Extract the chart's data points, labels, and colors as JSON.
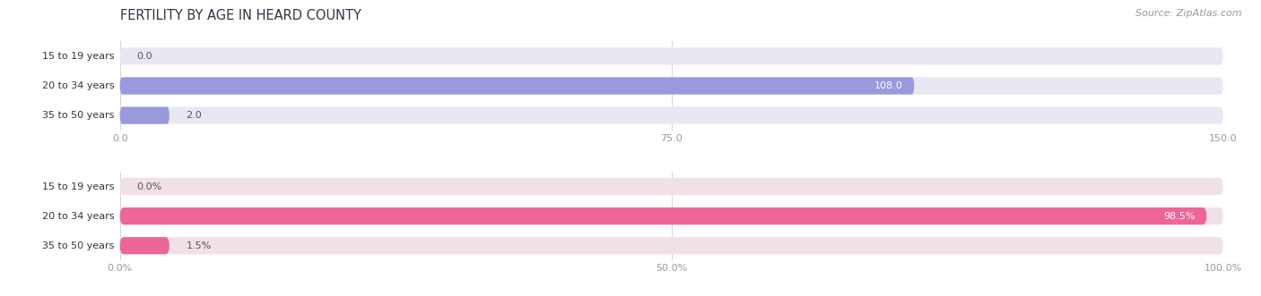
{
  "title": "FERTILITY BY AGE IN HEARD COUNTY",
  "source": "Source: ZipAtlas.com",
  "top_chart": {
    "categories": [
      "15 to 19 years",
      "20 to 34 years",
      "35 to 50 years"
    ],
    "values": [
      0.0,
      108.0,
      2.0
    ],
    "xlim": [
      0,
      150
    ],
    "xticks": [
      0.0,
      75.0,
      150.0
    ],
    "xtick_labels": [
      "0.0",
      "75.0",
      "150.0"
    ],
    "bar_color": "#9999dd",
    "bar_bg_color": "#e8e8f2",
    "label_inside_color": "#ffffff",
    "label_outside_color": "#555555"
  },
  "bottom_chart": {
    "categories": [
      "15 to 19 years",
      "20 to 34 years",
      "35 to 50 years"
    ],
    "values": [
      0.0,
      98.5,
      1.5
    ],
    "xlim": [
      0,
      100
    ],
    "xticks": [
      0.0,
      50.0,
      100.0
    ],
    "xtick_labels": [
      "0.0%",
      "50.0%",
      "100.0%"
    ],
    "bar_color": "#ee6699",
    "bar_bg_color": "#f2e0e8",
    "label_inside_color": "#ffffff",
    "label_outside_color": "#555555"
  },
  "title_fontsize": 10.5,
  "source_fontsize": 8,
  "label_fontsize": 8,
  "tick_fontsize": 8,
  "category_fontsize": 8,
  "title_color": "#333344",
  "source_color": "#999999",
  "tick_color": "#999999",
  "category_color": "#333344",
  "background_color": "#ffffff",
  "bar_height": 0.58
}
